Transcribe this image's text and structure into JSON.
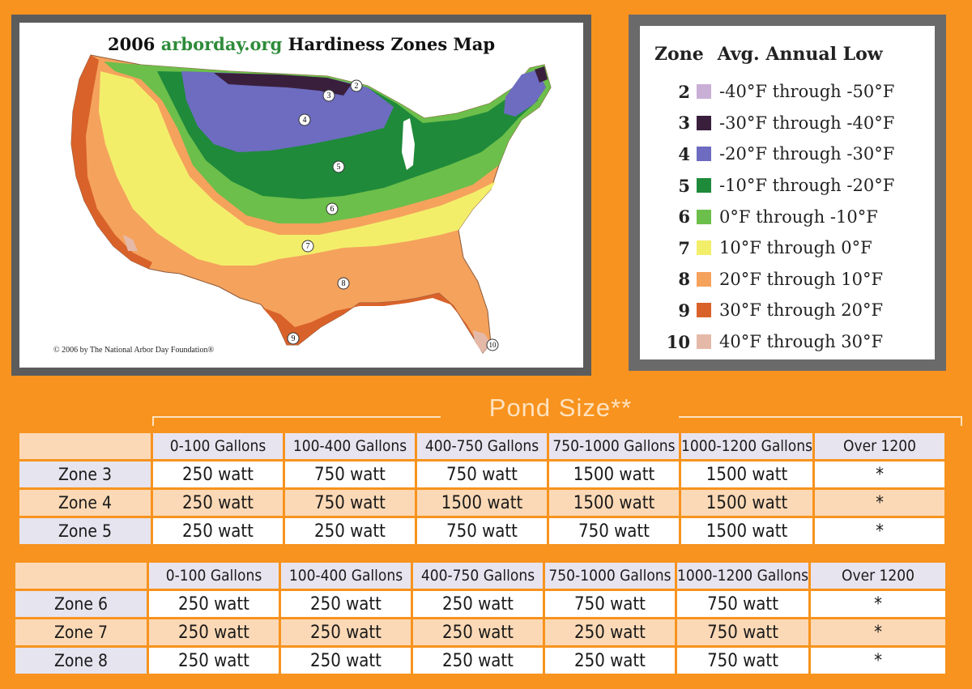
{
  "map": {
    "title_year": "2006",
    "title_site": "arborday.org",
    "title_rest": "Hardiness Zones Map",
    "copyright": "© 2006 by The National Arbor Day Foundation®",
    "zone_markers": [
      "2",
      "3",
      "4",
      "5",
      "6",
      "7",
      "8",
      "9",
      "10"
    ]
  },
  "legend": {
    "header_zone": "Zone",
    "header_low": "Avg. Annual Low",
    "rows": [
      {
        "zone": "2",
        "range": "-40°F through -50°F",
        "color": "#c9aed6"
      },
      {
        "zone": "3",
        "range": "-30°F through -40°F",
        "color": "#3a1f3d"
      },
      {
        "zone": "4",
        "range": "-20°F through -30°F",
        "color": "#6d6cc0"
      },
      {
        "zone": "5",
        "range": "-10°F through -20°F",
        "color": "#1f8a3a"
      },
      {
        "zone": "6",
        "range": "0°F through -10°F",
        "color": "#6cbf4a"
      },
      {
        "zone": "7",
        "range": "10°F through 0°F",
        "color": "#f3ee6a"
      },
      {
        "zone": "8",
        "range": "20°F through 10°F",
        "color": "#f5a25d"
      },
      {
        "zone": "9",
        "range": "30°F through 20°F",
        "color": "#d9622a"
      },
      {
        "zone": "10",
        "range": "40°F through 30°F",
        "color": "#e5b9a8"
      }
    ]
  },
  "pond": {
    "title": "Pond Size**",
    "table1": {
      "headers": [
        "0-100 Gallons",
        "100-400 Gallons",
        "400-750 Gallons",
        "750-1000 Gallons",
        "1000-1200 Gallons",
        "Over 1200"
      ],
      "rows": [
        {
          "zone": "Zone 3",
          "cells": [
            "250 watt",
            "750 watt",
            "750 watt",
            "1500 watt",
            "1500 watt",
            "*"
          ]
        },
        {
          "zone": "Zone 4",
          "cells": [
            "250 watt",
            "750 watt",
            "1500 watt",
            "1500 watt",
            "1500 watt",
            "*"
          ]
        },
        {
          "zone": "Zone 5",
          "cells": [
            "250 watt",
            "250 watt",
            "750 watt",
            "750 watt",
            "1500 watt",
            "*"
          ]
        }
      ]
    },
    "table2": {
      "headers": [
        "0-100 Gallons",
        "100-400 Gallons",
        "400-750 Gallons",
        "750-1000 Gallons",
        "1000-1200 Gallons",
        "Over 1200"
      ],
      "rows": [
        {
          "zone": "Zone 6",
          "cells": [
            "250 watt",
            "250 watt",
            "250 watt",
            "750 watt",
            "750 watt",
            "*"
          ]
        },
        {
          "zone": "Zone 7",
          "cells": [
            "250 watt",
            "250 watt",
            "250 watt",
            "250 watt",
            "750 watt",
            "*"
          ]
        },
        {
          "zone": "Zone 8",
          "cells": [
            "250 watt",
            "250 watt",
            "250 watt",
            "250 watt",
            "750 watt",
            "*"
          ]
        }
      ]
    }
  }
}
